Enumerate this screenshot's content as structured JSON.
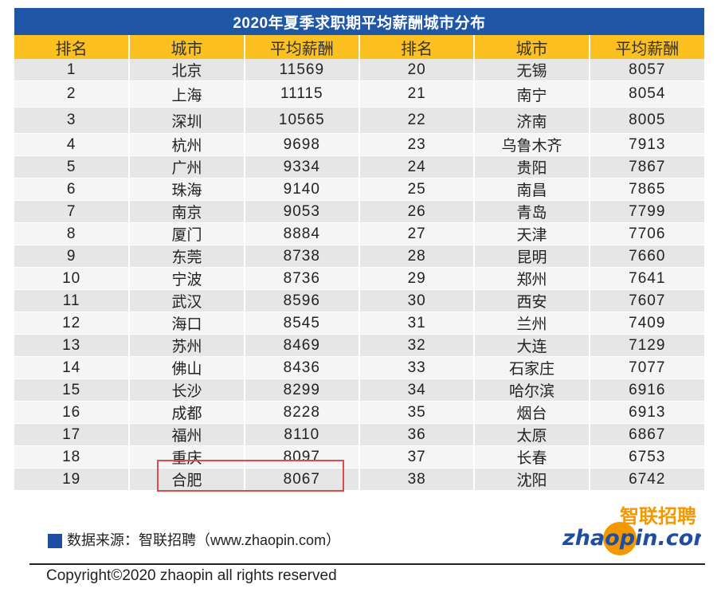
{
  "table": {
    "title": "2020年夏季求职期平均薪酬城市分布",
    "headers": [
      "排名",
      "城市",
      "平均薪酬",
      "排名",
      "城市",
      "平均薪酬"
    ]
  },
  "chart_data": {
    "type": "table",
    "title": "2020年夏季求职期平均薪酬城市分布",
    "columns": [
      "排名",
      "城市",
      "平均薪酬"
    ],
    "rows": [
      [
        1,
        "北京",
        11569
      ],
      [
        2,
        "上海",
        11115
      ],
      [
        3,
        "深圳",
        10565
      ],
      [
        4,
        "杭州",
        9698
      ],
      [
        5,
        "广州",
        9334
      ],
      [
        6,
        "珠海",
        9140
      ],
      [
        7,
        "南京",
        9053
      ],
      [
        8,
        "厦门",
        8884
      ],
      [
        9,
        "东莞",
        8738
      ],
      [
        10,
        "宁波",
        8736
      ],
      [
        11,
        "武汉",
        8596
      ],
      [
        12,
        "海口",
        8545
      ],
      [
        13,
        "苏州",
        8469
      ],
      [
        14,
        "佛山",
        8436
      ],
      [
        15,
        "长沙",
        8299
      ],
      [
        16,
        "成都",
        8228
      ],
      [
        17,
        "福州",
        8110
      ],
      [
        18,
        "重庆",
        8097
      ],
      [
        19,
        "合肥",
        8067
      ],
      [
        20,
        "无锡",
        8057
      ],
      [
        21,
        "南宁",
        8054
      ],
      [
        22,
        "济南",
        8005
      ],
      [
        23,
        "乌鲁木齐",
        7913
      ],
      [
        24,
        "贵阳",
        7867
      ],
      [
        25,
        "南昌",
        7865
      ],
      [
        26,
        "青岛",
        7799
      ],
      [
        27,
        "天津",
        7706
      ],
      [
        28,
        "昆明",
        7660
      ],
      [
        29,
        "郑州",
        7641
      ],
      [
        30,
        "西安",
        7607
      ],
      [
        31,
        "兰州",
        7409
      ],
      [
        32,
        "大连",
        7129
      ],
      [
        33,
        "石家庄",
        7077
      ],
      [
        34,
        "哈尔滨",
        6916
      ],
      [
        35,
        "烟台",
        6913
      ],
      [
        36,
        "太原",
        6867
      ],
      [
        37,
        "长春",
        6753
      ],
      [
        38,
        "沈阳",
        6742
      ]
    ],
    "highlight_rank": 19
  },
  "colors": {
    "title_bg": "#1f56a6",
    "header_bg": "#fcc020",
    "row_odd": "#e6e6e6",
    "row_even": "#f5f5f5",
    "highlight_border": "#e04a4a",
    "logo_orange": "#f39800",
    "logo_blue": "#1f4ea0"
  },
  "footer": {
    "source": "数据来源：智联招聘（www.zhaopin.com）",
    "copyright": "Copyright©2020 zhaopin all rights reserved"
  },
  "logo": {
    "cn_text": "智联招聘",
    "en_text": "zhaopin.com"
  }
}
